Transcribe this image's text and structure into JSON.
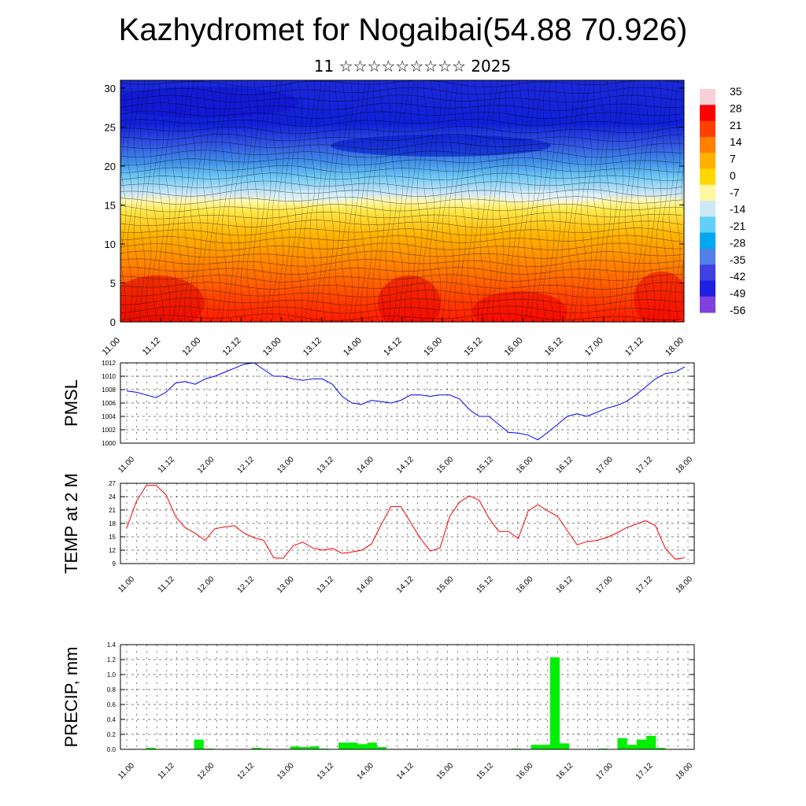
{
  "header": {
    "title": "Kazhydromet for Nogaibai(54.88 70.926)",
    "subtitle": "11 ☆☆☆☆☆☆☆☆☆ 2025"
  },
  "time_labels": [
    "11.00",
    "11.12",
    "12.00",
    "12.12",
    "13.00",
    "13.12",
    "14.00",
    "14.12",
    "15.00",
    "15.12",
    "16.00",
    "16.12",
    "17.00",
    "17.12",
    "18.00"
  ],
  "colors": {
    "pmsl_line": "#0000ff",
    "temp_line": "#ff0000",
    "precip_bar": "#00ee00"
  },
  "chart_data": [
    {
      "type": "heatmap",
      "title": "",
      "ylim": [
        0,
        31
      ],
      "yticks": [
        "0",
        "5",
        "10",
        "15",
        "20",
        "25",
        "30"
      ],
      "x_range": [
        "11.00",
        "18.00"
      ],
      "colorbar": {
        "labels": [
          "35",
          "28",
          "21",
          "14",
          "7",
          "0",
          "-7",
          "-14",
          "-21",
          "-28",
          "-35",
          "-42",
          "-49",
          "-56"
        ],
        "colors": [
          "#f8d0d8",
          "#ff0000",
          "#ff4000",
          "#ff8000",
          "#ffb000",
          "#ffd800",
          "#fff8a0",
          "#cfe8f8",
          "#60d0f8",
          "#00a8f0",
          "#5080e8",
          "#4040e0",
          "#2020e0",
          "#8040e0"
        ]
      },
      "level_temperature_profile": [
        {
          "level": 0,
          "temp": 30
        },
        {
          "level": 5,
          "temp": 25
        },
        {
          "level": 10,
          "temp": 14
        },
        {
          "level": 15,
          "temp": 0
        },
        {
          "level": 17,
          "temp": -14
        },
        {
          "level": 20,
          "temp": -30
        },
        {
          "level": 23,
          "temp": -45
        },
        {
          "level": 27,
          "temp": -50
        },
        {
          "level": 31,
          "temp": -45
        }
      ],
      "wind_overlay": true
    },
    {
      "type": "line",
      "ylabel": "PMSL",
      "ylim": [
        1000,
        1012
      ],
      "yticks": [
        "1000",
        "1002",
        "1004",
        "1006",
        "1008",
        "1010",
        "1012"
      ],
      "series": [
        {
          "values": [
            1007.8,
            1007.6,
            1007.2,
            1006.8,
            1007.6,
            1009.0,
            1009.2,
            1008.8,
            1009.6,
            1010.0,
            1010.6,
            1011.2,
            1011.8,
            1012.0,
            1011.0,
            1010.0,
            1010.0,
            1009.6,
            1009.4,
            1009.6,
            1009.6,
            1008.8,
            1007.0,
            1006.0,
            1005.8,
            1006.4,
            1006.2,
            1006.0,
            1006.4,
            1007.2,
            1007.2,
            1007.0,
            1007.2,
            1007.2,
            1006.6,
            1005.0,
            1004.0,
            1004.0,
            1002.8,
            1001.6,
            1001.5,
            1001.2,
            1000.5,
            1001.6,
            1002.8,
            1004.0,
            1004.4,
            1004.0,
            1004.6,
            1005.2,
            1005.6,
            1006.2,
            1007.2,
            1008.4,
            1009.6,
            1010.4,
            1010.6,
            1011.4
          ]
        }
      ]
    },
    {
      "type": "line",
      "ylabel": "TEMP at 2 M",
      "ylim": [
        9,
        27
      ],
      "yticks": [
        "9",
        "12",
        "15",
        "18",
        "21",
        "24",
        "27"
      ],
      "series": [
        {
          "values": [
            17,
            23,
            26.5,
            26.5,
            24.5,
            19.5,
            17,
            15.8,
            14.2,
            16.8,
            17.2,
            17.5,
            15.8,
            14.8,
            14.2,
            10.3,
            10.2,
            13,
            13.8,
            12.5,
            12,
            12.4,
            11.3,
            11.6,
            12.0,
            13.4,
            17.8,
            21.8,
            21.8,
            18.2,
            14.6,
            11.8,
            12.5,
            19.6,
            22.8,
            24.2,
            23.2,
            19.2,
            16.2,
            16.2,
            14.6,
            20.8,
            22.2,
            20.8,
            19.6,
            16.4,
            13.2,
            13.9,
            14.2,
            14.8,
            15.8,
            17,
            17.8,
            18.6,
            17.5,
            12.5,
            10,
            10.3
          ]
        }
      ]
    },
    {
      "type": "bar",
      "ylabel": "PRECIP, mm",
      "ylim": [
        0,
        1.4
      ],
      "yticks": [
        "0.0",
        "0.2",
        "0.4",
        "0.6",
        "0.8",
        "1.0",
        "1.2",
        "1.4"
      ],
      "values": [
        0,
        0,
        0.02,
        0,
        0,
        0,
        0,
        0.13,
        0.01,
        0,
        0,
        0,
        0,
        0.02,
        0.01,
        0,
        0,
        0.04,
        0.03,
        0.04,
        0.01,
        0,
        0.09,
        0.09,
        0.07,
        0.09,
        0.03,
        0,
        0,
        0,
        0,
        0,
        0,
        0,
        0,
        0,
        0,
        0,
        0,
        0,
        0.01,
        0,
        0.06,
        0.06,
        1.23,
        0.08,
        0,
        0,
        0,
        0.01,
        0,
        0.15,
        0.06,
        0.13,
        0.18,
        0.02,
        0,
        0
      ]
    }
  ]
}
